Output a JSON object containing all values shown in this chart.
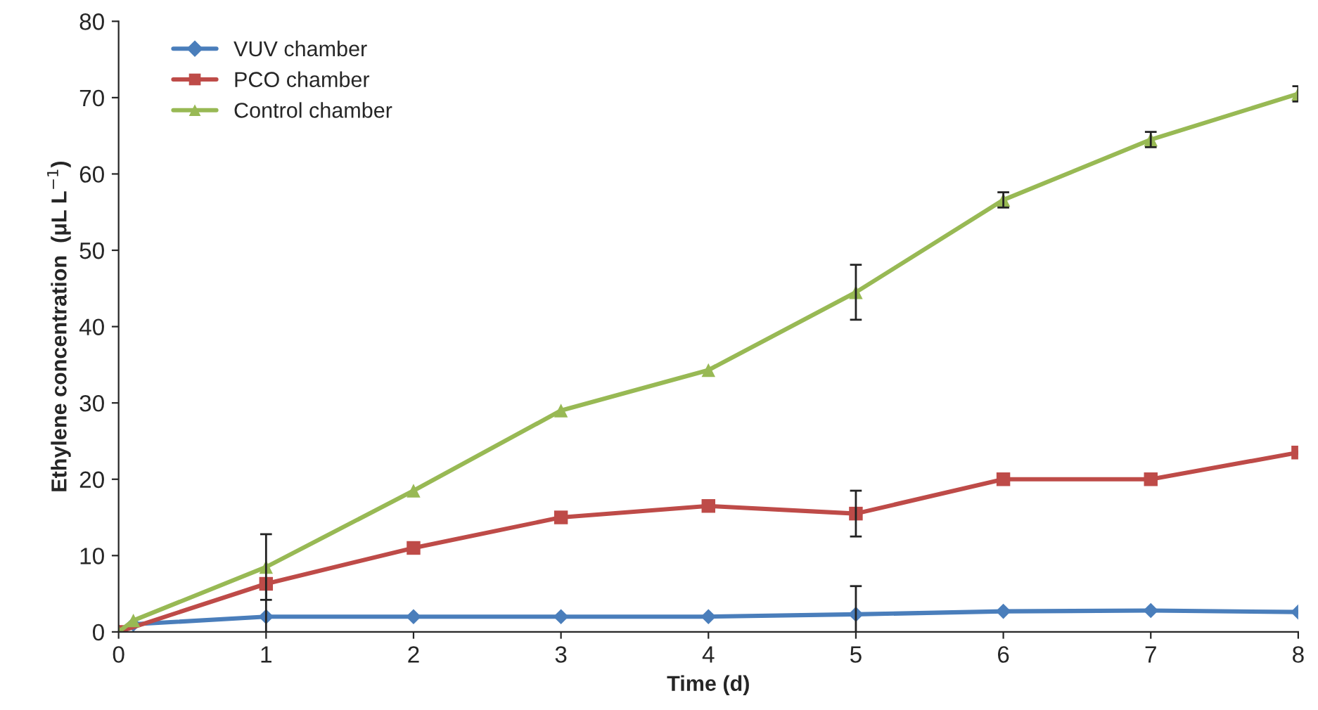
{
  "chart_data": {
    "type": "line",
    "xlabel": "Time (d)",
    "ylabel": "Ethylene concentration  (μL L$^{−1}$)",
    "xlim": [
      0,
      8
    ],
    "xticks": [
      0,
      1,
      2,
      3,
      4,
      5,
      6,
      7,
      8
    ],
    "ylim": [
      0,
      80
    ],
    "yticks": [
      0,
      10,
      20,
      30,
      40,
      50,
      60,
      70,
      80
    ],
    "grid": false,
    "legend": "top left",
    "series": [
      {
        "name": "VUV chamber",
        "color": "#4a7ebb",
        "marker": "diamond",
        "x": [
          0,
          0.1,
          1,
          2,
          3,
          4,
          5,
          6,
          7,
          8
        ],
        "values": [
          0,
          1.0,
          2.0,
          2.0,
          2.0,
          2.0,
          2.3,
          2.7,
          2.8,
          2.6
        ],
        "errors": [
          null,
          null,
          4.5,
          null,
          null,
          null,
          3.7,
          null,
          null,
          null
        ]
      },
      {
        "name": "PCO chamber",
        "color": "#be4b48",
        "marker": "square",
        "x": [
          0,
          0.1,
          1,
          2,
          3,
          4,
          5,
          6,
          7,
          8
        ],
        "values": [
          0,
          null,
          6.3,
          11,
          15,
          16.5,
          15.5,
          20,
          20,
          23.5
        ],
        "errors": [
          null,
          null,
          null,
          null,
          null,
          null,
          3,
          null,
          null,
          null
        ]
      },
      {
        "name": "Control chamber",
        "color": "#98b954",
        "marker": "triangle",
        "x": [
          0,
          0.1,
          1,
          2,
          3,
          4,
          5,
          6,
          7,
          8
        ],
        "values": [
          0,
          1.5,
          8.5,
          18.5,
          29,
          34.3,
          44.5,
          56.6,
          64.5,
          70.5
        ],
        "errors": [
          null,
          null,
          4.3,
          null,
          null,
          null,
          3.6,
          1,
          1,
          1
        ]
      }
    ]
  }
}
